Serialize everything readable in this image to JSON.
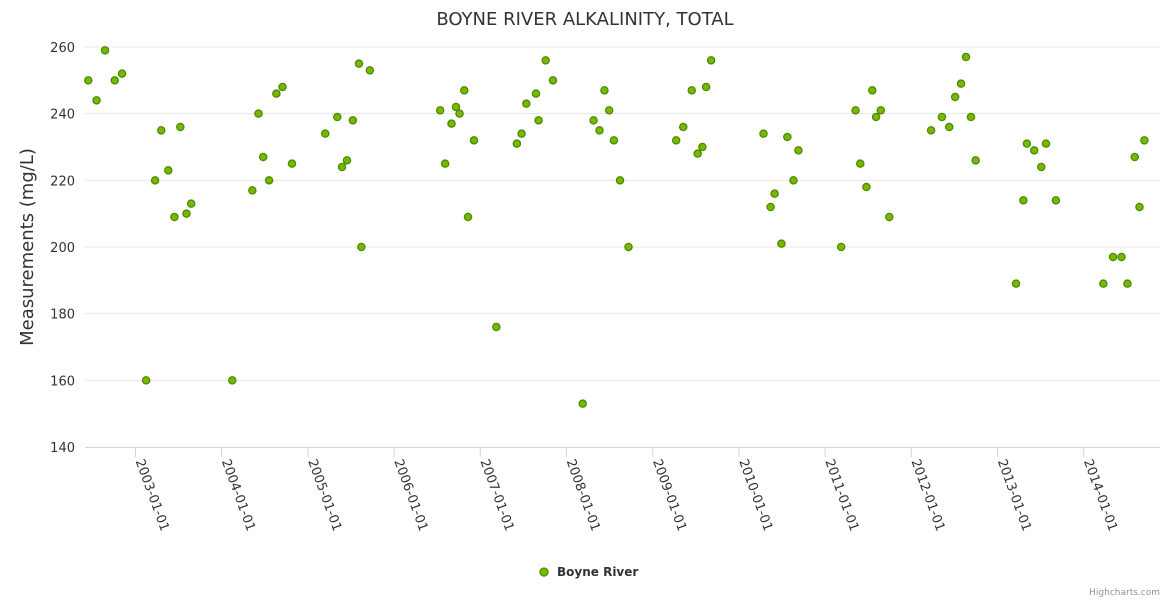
{
  "chart_data": {
    "type": "scatter",
    "title": "BOYNE RIVER ALKALINITY, TOTAL",
    "ylabel": "Measurements (mg/L)",
    "xlabel": "",
    "ylim": [
      140,
      260
    ],
    "yticks": [
      140,
      160,
      180,
      200,
      220,
      240,
      260
    ],
    "xlim": [
      "2002-06-01",
      "2014-11-20"
    ],
    "xticks": [
      "2003-01-01",
      "2004-01-01",
      "2005-01-01",
      "2006-01-01",
      "2007-01-01",
      "2008-01-01",
      "2009-01-01",
      "2010-01-01",
      "2011-01-01",
      "2012-01-01",
      "2013-01-01",
      "2014-01-01"
    ],
    "grid": true,
    "legend": {
      "position": "bottom-center"
    },
    "credits": "Highcharts.com",
    "series": [
      {
        "name": "Boyne River",
        "color": "#76b900",
        "stroke": "#4e8a00",
        "points": [
          [
            "2002-06-15",
            250
          ],
          [
            "2002-07-20",
            244
          ],
          [
            "2002-08-25",
            259
          ],
          [
            "2002-10-05",
            250
          ],
          [
            "2002-11-05",
            252
          ],
          [
            "2003-02-15",
            160
          ],
          [
            "2003-03-25",
            220
          ],
          [
            "2003-04-20",
            235
          ],
          [
            "2003-05-20",
            223
          ],
          [
            "2003-06-15",
            209
          ],
          [
            "2003-07-10",
            236
          ],
          [
            "2003-08-05",
            210
          ],
          [
            "2003-08-25",
            213
          ],
          [
            "2004-02-15",
            160
          ],
          [
            "2004-05-10",
            217
          ],
          [
            "2004-06-05",
            240
          ],
          [
            "2004-06-25",
            227
          ],
          [
            "2004-07-20",
            220
          ],
          [
            "2004-08-20",
            246
          ],
          [
            "2004-09-15",
            248
          ],
          [
            "2004-10-25",
            225
          ],
          [
            "2005-03-15",
            234
          ],
          [
            "2005-05-05",
            239
          ],
          [
            "2005-05-25",
            224
          ],
          [
            "2005-06-15",
            226
          ],
          [
            "2005-07-10",
            238
          ],
          [
            "2005-08-05",
            255
          ],
          [
            "2005-08-15",
            200
          ],
          [
            "2005-09-20",
            253
          ],
          [
            "2006-07-15",
            241
          ],
          [
            "2006-08-05",
            225
          ],
          [
            "2006-09-01",
            237
          ],
          [
            "2006-09-20",
            242
          ],
          [
            "2006-10-05",
            240
          ],
          [
            "2006-10-25",
            247
          ],
          [
            "2006-11-10",
            209
          ],
          [
            "2006-12-05",
            232
          ],
          [
            "2007-03-10",
            176
          ],
          [
            "2007-06-05",
            231
          ],
          [
            "2007-06-25",
            234
          ],
          [
            "2007-07-15",
            243
          ],
          [
            "2007-08-25",
            246
          ],
          [
            "2007-09-05",
            238
          ],
          [
            "2007-10-05",
            256
          ],
          [
            "2007-11-05",
            250
          ],
          [
            "2008-03-10",
            153
          ],
          [
            "2008-04-25",
            238
          ],
          [
            "2008-05-20",
            235
          ],
          [
            "2008-06-10",
            247
          ],
          [
            "2008-06-30",
            241
          ],
          [
            "2008-07-20",
            232
          ],
          [
            "2008-08-15",
            220
          ],
          [
            "2008-09-20",
            200
          ],
          [
            "2009-04-10",
            232
          ],
          [
            "2009-05-10",
            236
          ],
          [
            "2009-06-15",
            247
          ],
          [
            "2009-07-10",
            228
          ],
          [
            "2009-07-30",
            230
          ],
          [
            "2009-08-15",
            248
          ],
          [
            "2009-09-05",
            256
          ],
          [
            "2010-04-15",
            234
          ],
          [
            "2010-05-15",
            212
          ],
          [
            "2010-06-01",
            216
          ],
          [
            "2010-06-30",
            201
          ],
          [
            "2010-07-25",
            233
          ],
          [
            "2010-08-20",
            220
          ],
          [
            "2010-09-10",
            229
          ],
          [
            "2011-03-10",
            200
          ],
          [
            "2011-05-10",
            241
          ],
          [
            "2011-05-30",
            225
          ],
          [
            "2011-06-25",
            218
          ],
          [
            "2011-07-20",
            247
          ],
          [
            "2011-08-05",
            239
          ],
          [
            "2011-08-25",
            241
          ],
          [
            "2011-09-30",
            209
          ],
          [
            "2012-03-25",
            235
          ],
          [
            "2012-05-10",
            239
          ],
          [
            "2012-06-10",
            236
          ],
          [
            "2012-07-05",
            245
          ],
          [
            "2012-07-30",
            249
          ],
          [
            "2012-08-20",
            257
          ],
          [
            "2012-09-10",
            239
          ],
          [
            "2012-09-30",
            226
          ],
          [
            "2013-03-20",
            189
          ],
          [
            "2013-04-20",
            214
          ],
          [
            "2013-05-05",
            231
          ],
          [
            "2013-06-05",
            229
          ],
          [
            "2013-07-05",
            224
          ],
          [
            "2013-07-25",
            231
          ],
          [
            "2013-09-05",
            214
          ],
          [
            "2014-03-25",
            189
          ],
          [
            "2014-05-05",
            197
          ],
          [
            "2014-06-10",
            197
          ],
          [
            "2014-07-05",
            189
          ],
          [
            "2014-08-05",
            227
          ],
          [
            "2014-08-25",
            212
          ],
          [
            "2014-09-15",
            232
          ]
        ]
      }
    ]
  }
}
